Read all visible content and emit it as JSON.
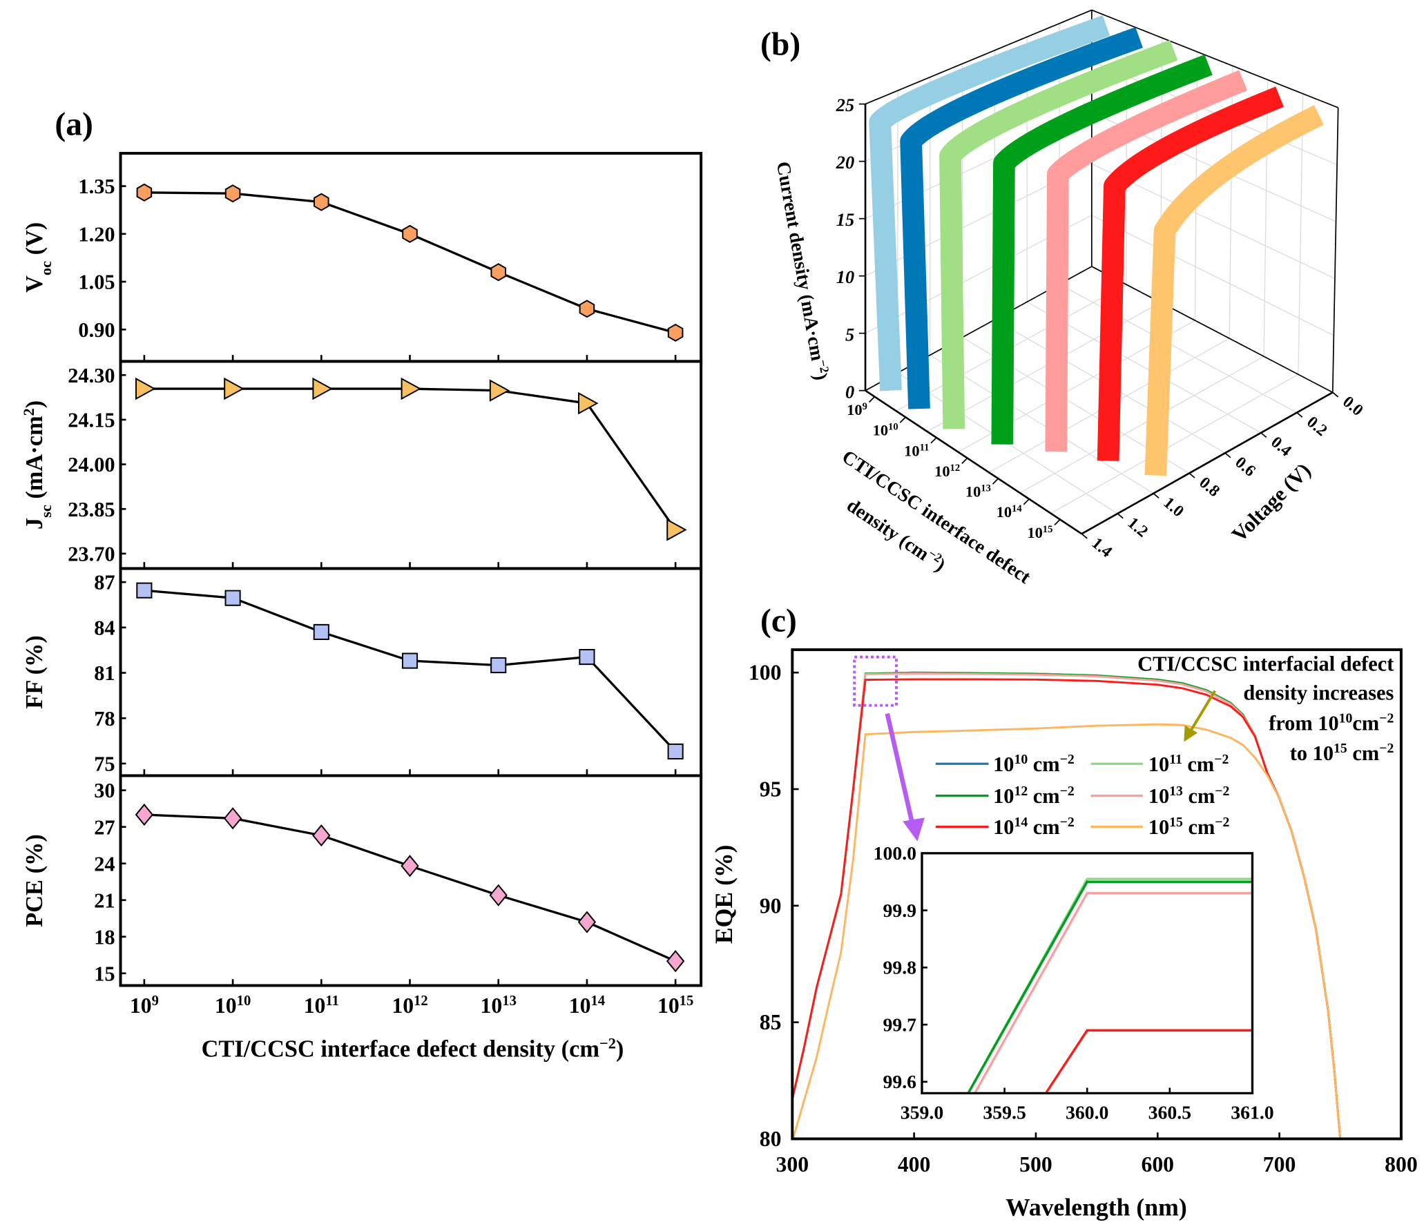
{
  "panel_labels": {
    "a": "(a)",
    "b": "(b)",
    "c": "(c)"
  },
  "chart_data": [
    {
      "type": "line",
      "panel": "(a)",
      "x": [
        9,
        10,
        11,
        12,
        13,
        14,
        15
      ],
      "x_tick_labels": [
        [
          [
            "10"
          ],
          [
            "9",
            "sup"
          ]
        ],
        [
          [
            "10"
          ],
          [
            "10",
            "sup"
          ]
        ],
        [
          [
            "10"
          ],
          [
            "11",
            "sup"
          ]
        ],
        [
          [
            "10"
          ],
          [
            "12",
            "sup"
          ]
        ],
        [
          [
            "10"
          ],
          [
            "13",
            "sup"
          ]
        ],
        [
          [
            "10"
          ],
          [
            "14",
            "sup"
          ]
        ],
        [
          [
            "10"
          ],
          [
            "15",
            "sup"
          ]
        ]
      ],
      "xlabel": [
        [
          "CTI/CCSC interface defect density (cm"
        ],
        [
          "−2",
          "sup"
        ],
        [
          ")"
        ]
      ],
      "subplots": [
        {
          "name": "voc",
          "ylabel": [
            [
              "V"
            ],
            [
              "oc",
              "sub"
            ],
            [
              " (V)"
            ]
          ],
          "ylim": [
            0.8,
            1.453
          ],
          "yticks": [
            0.9,
            1.05,
            1.2,
            1.35
          ],
          "ytick_labels": [
            "0.90",
            "1.05",
            "1.20",
            "1.35"
          ],
          "values": [
            1.33,
            1.327,
            1.3,
            1.2,
            1.08,
            0.965,
            0.89
          ],
          "marker": "hexagon",
          "color": "#F9A061"
        },
        {
          "name": "jsc",
          "ylabel": [
            [
              "J"
            ],
            [
              "sc",
              "sub"
            ],
            [
              " (mA·cm"
            ],
            [
              "2",
              "sup"
            ],
            [
              ")"
            ]
          ],
          "ylim": [
            23.65,
            24.346
          ],
          "yticks": [
            23.7,
            23.85,
            24.0,
            24.15,
            24.3
          ],
          "ytick_labels": [
            "23.70",
            "23.85",
            "24.00",
            "24.15",
            "24.30"
          ],
          "values": [
            24.254,
            24.254,
            24.254,
            24.254,
            24.248,
            24.205,
            23.78
          ],
          "marker": "triangle-right",
          "color": "#F8C060"
        },
        {
          "name": "ff",
          "ylabel": [
            [
              "FF (%)"
            ]
          ],
          "ylim": [
            74.2,
            87.9
          ],
          "yticks": [
            75,
            78,
            81,
            84,
            87
          ],
          "ytick_labels": [
            "75",
            "78",
            "81",
            "84",
            "87"
          ],
          "values": [
            86.45,
            85.95,
            83.7,
            81.8,
            81.5,
            82.05,
            75.8
          ],
          "marker": "square",
          "color": "#B3C1F3"
        },
        {
          "name": "pce",
          "ylabel": [
            [
              "PCE (%)"
            ]
          ],
          "ylim": [
            14.0,
            31.2
          ],
          "yticks": [
            15,
            18,
            21,
            24,
            27,
            30
          ],
          "ytick_labels": [
            "15",
            "18",
            "21",
            "24",
            "27",
            "30"
          ],
          "values": [
            28.0,
            27.7,
            26.3,
            23.8,
            21.4,
            19.2,
            16.0
          ],
          "marker": "diamond",
          "color": "#F6A7CF"
        }
      ]
    },
    {
      "type": "3d-line",
      "panel": "(b)",
      "zlabel": [
        [
          "Current density (mA·cm"
        ],
        [
          "−2",
          "sup"
        ],
        [
          ")"
        ]
      ],
      "ztick_labels": [
        "0",
        "5",
        "10",
        "15",
        "20",
        "25"
      ],
      "zlim": [
        0,
        25
      ],
      "density_label_lines": [
        [
          [
            "CTI/CCSC interface defect"
          ]
        ],
        [
          [
            "density (cm"
          ],
          [
            "−2",
            "sup"
          ],
          [
            ")"
          ]
        ]
      ],
      "density_tick_labels": [
        [
          [
            "10"
          ],
          [
            "9",
            "sup"
          ]
        ],
        [
          [
            "10"
          ],
          [
            "10",
            "sup"
          ]
        ],
        [
          [
            "10"
          ],
          [
            "11",
            "sup"
          ]
        ],
        [
          [
            "10"
          ],
          [
            "12",
            "sup"
          ]
        ],
        [
          [
            "10"
          ],
          [
            "13",
            "sup"
          ]
        ],
        [
          [
            "10"
          ],
          [
            "14",
            "sup"
          ]
        ],
        [
          [
            "10"
          ],
          [
            "15",
            "sup"
          ]
        ]
      ],
      "voltage_label": [
        [
          "Voltage (V)"
        ]
      ],
      "voltage_tick_labels": [
        "0.0",
        "0.2",
        "0.4",
        "0.6",
        "0.8",
        "1.0",
        "1.2",
        "1.4"
      ],
      "xlim_voltage": [
        0.0,
        1.4
      ],
      "series": [
        {
          "density_exp": 9,
          "color": "#96CFE4",
          "jsc": 24.25,
          "voc": 1.33
        },
        {
          "density_exp": 10,
          "color": "#0077B6",
          "jsc": 24.25,
          "voc": 1.33
        },
        {
          "density_exp": 11,
          "color": "#A1DF85",
          "jsc": 24.25,
          "voc": 1.3
        },
        {
          "density_exp": 12,
          "color": "#00A01A",
          "jsc": 24.25,
          "voc": 1.2
        },
        {
          "density_exp": 13,
          "color": "#FF9C9C",
          "jsc": 24.25,
          "voc": 1.08
        },
        {
          "density_exp": 14,
          "color": "#FF1A1A",
          "jsc": 24.2,
          "voc": 0.965
        },
        {
          "density_exp": 15,
          "color": "#FFC46E",
          "jsc": 23.78,
          "voc": 0.89
        }
      ]
    },
    {
      "type": "line",
      "panel": "(c)",
      "xlabel": "Wavelength (nm)",
      "ylabel": "EQE (%)",
      "xlim": [
        300,
        800
      ],
      "ylim": [
        80,
        100.98
      ],
      "xticks": [
        300,
        400,
        500,
        600,
        700,
        800
      ],
      "xtick_labels": [
        "300",
        "400",
        "500",
        "600",
        "700",
        "800"
      ],
      "yticks": [
        80,
        85,
        90,
        95,
        100
      ],
      "ytick_labels": [
        "80",
        "85",
        "90",
        "95",
        "100"
      ],
      "annotation_lines": [
        [
          [
            "CTI/CCSC interfacial defect"
          ]
        ],
        [
          [
            "density increases"
          ]
        ],
        [
          [
            "from 10"
          ],
          [
            "10",
            "sup"
          ],
          [
            "cm"
          ],
          [
            "−2",
            "sup"
          ]
        ],
        [
          [
            "to 10"
          ],
          [
            "15",
            "sup"
          ],
          [
            " cm"
          ],
          [
            "−2",
            "sup"
          ]
        ]
      ],
      "annotation_arrow_color": "#A39B00",
      "zoom_box_color": "#B65CF2",
      "x": [
        300,
        310,
        320,
        330,
        340,
        350,
        360,
        400,
        450,
        500,
        550,
        600,
        620,
        640,
        660,
        670,
        680,
        690,
        700,
        710,
        720,
        730,
        740,
        745,
        750
      ],
      "series": [
        {
          "label": [
            [
              "10"
            ],
            [
              "10",
              "sup"
            ],
            [
              " cm"
            ],
            [
              "−2",
              "sup"
            ]
          ],
          "color": "#1F77B4",
          "y": [
            81.7,
            84,
            86.5,
            88.5,
            90.5,
            95,
            99.95,
            100,
            99.98,
            99.95,
            99.88,
            99.7,
            99.55,
            99.25,
            98.7,
            98.2,
            97.3,
            95.7,
            94.6,
            93.2,
            91.3,
            89,
            85.5,
            83,
            80
          ]
        },
        {
          "label": [
            [
              "10"
            ],
            [
              "11",
              "sup"
            ],
            [
              " cm"
            ],
            [
              "−2",
              "sup"
            ]
          ],
          "color": "#8FD886",
          "y": [
            81.7,
            84,
            86.5,
            88.5,
            90.5,
            95,
            99.96,
            100,
            99.98,
            99.95,
            99.88,
            99.7,
            99.55,
            99.25,
            98.7,
            98.2,
            97.3,
            95.7,
            94.6,
            93.2,
            91.3,
            89,
            85.5,
            83,
            80
          ]
        },
        {
          "label": [
            [
              "10"
            ],
            [
              "12",
              "sup"
            ],
            [
              " cm"
            ],
            [
              "−2",
              "sup"
            ]
          ],
          "color": "#00A01E",
          "y": [
            81.7,
            84,
            86.5,
            88.5,
            90.5,
            95,
            99.95,
            99.99,
            99.97,
            99.94,
            99.87,
            99.69,
            99.54,
            99.24,
            98.69,
            98.19,
            97.3,
            95.7,
            94.6,
            93.2,
            91.3,
            89,
            85.5,
            83,
            80
          ]
        },
        {
          "label": [
            [
              "10"
            ],
            [
              "13",
              "sup"
            ],
            [
              " cm"
            ],
            [
              "−2",
              "sup"
            ]
          ],
          "color": "#F9A0A0",
          "y": [
            81.7,
            84,
            86.5,
            88.5,
            90.5,
            95,
            99.93,
            99.96,
            99.94,
            99.91,
            99.84,
            99.65,
            99.5,
            99.2,
            98.65,
            98.15,
            97.3,
            95.7,
            94.6,
            93.2,
            91.3,
            89,
            85.5,
            83,
            80
          ]
        },
        {
          "label": [
            [
              "10"
            ],
            [
              "14",
              "sup"
            ],
            [
              " cm"
            ],
            [
              "−2",
              "sup"
            ]
          ],
          "color": "#FF1A1A",
          "y": [
            81.7,
            84,
            86.5,
            88.5,
            90.5,
            95,
            99.69,
            99.71,
            99.71,
            99.7,
            99.64,
            99.48,
            99.33,
            99.05,
            98.55,
            98.1,
            97.25,
            95.7,
            94.6,
            93.2,
            91.3,
            89,
            85.5,
            83,
            80
          ]
        },
        {
          "label": [
            [
              "10"
            ],
            [
              "15",
              "sup"
            ],
            [
              " cm"
            ],
            [
              "−2",
              "sup"
            ]
          ],
          "color": "#FFB55E",
          "y": [
            79.9,
            81.7,
            83.5,
            85.8,
            88,
            92,
            97.35,
            97.45,
            97.52,
            97.6,
            97.72,
            97.78,
            97.75,
            97.55,
            97.2,
            96.9,
            96.35,
            95.6,
            94.6,
            93.2,
            91.3,
            89,
            85.5,
            83,
            80
          ]
        }
      ],
      "inset": {
        "xlim": [
          359.0,
          361.0
        ],
        "ylim": [
          99.58,
          100.0
        ],
        "xtick_labels": [
          "359.0",
          "359.5",
          "360.0",
          "360.5",
          "361.0"
        ],
        "xticks": [
          359.0,
          359.5,
          360.0,
          360.5,
          361.0
        ],
        "ytick_labels": [
          "99.6",
          "99.7",
          "99.8",
          "99.9",
          "100.0"
        ],
        "yticks": [
          99.6,
          99.7,
          99.8,
          99.9,
          100.0
        ],
        "series": [
          {
            "color": "#8FD886",
            "x": [
              359.28,
              360.0,
              361.0
            ],
            "y": [
              99.58,
              99.955,
              99.955
            ]
          },
          {
            "color": "#1F77B4",
            "x": [
              359.28,
              360.0,
              361.0
            ],
            "y": [
              99.58,
              99.95,
              99.95
            ]
          },
          {
            "color": "#00A01E",
            "x": [
              359.28,
              360.0,
              361.0
            ],
            "y": [
              99.58,
              99.95,
              99.95
            ]
          },
          {
            "color": "#F9A0A0",
            "x": [
              359.32,
              360.0,
              361.0
            ],
            "y": [
              99.58,
              99.93,
              99.93
            ]
          },
          {
            "color": "#FF1A1A",
            "x": [
              359.75,
              360.0,
              361.0
            ],
            "y": [
              99.58,
              99.69,
              99.69
            ]
          }
        ]
      }
    }
  ]
}
